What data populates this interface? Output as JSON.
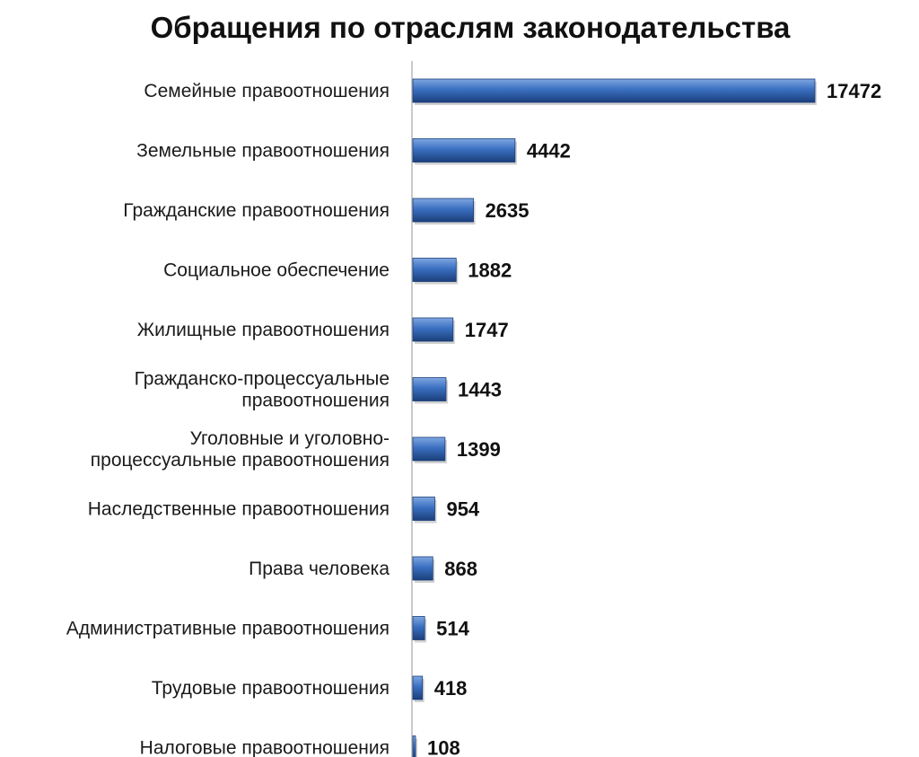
{
  "chart_data": {
    "type": "bar",
    "orientation": "horizontal",
    "title": "Обращения по отраслям законодательства",
    "categories": [
      [
        "Семейные правоотношения"
      ],
      [
        "Земельные правоотношения"
      ],
      [
        "Гражданские правоотношения"
      ],
      [
        "Социальное обеспечение"
      ],
      [
        "Жилищные правоотношения"
      ],
      [
        "Гражданско-процессуальные",
        "правоотношения"
      ],
      [
        "Уголовные и уголовно-",
        "процессуальные правоотношения"
      ],
      [
        "Наследственные правоотношения"
      ],
      [
        "Права человека"
      ],
      [
        "Административные правоотношения"
      ],
      [
        "Трудовые правоотношения"
      ],
      [
        "Налоговые правоотношения"
      ]
    ],
    "values": [
      17472,
      4442,
      2635,
      1882,
      1747,
      1443,
      1399,
      954,
      868,
      514,
      418,
      108
    ],
    "xlim": [
      0,
      17472
    ],
    "grid": false,
    "legend": "none",
    "colors": {
      "bar_light": "#7fa7e0",
      "bar_mid": "#3a6fc1",
      "bar_dark": "#1b3f7a",
      "axis": "#a6a6a6"
    }
  }
}
